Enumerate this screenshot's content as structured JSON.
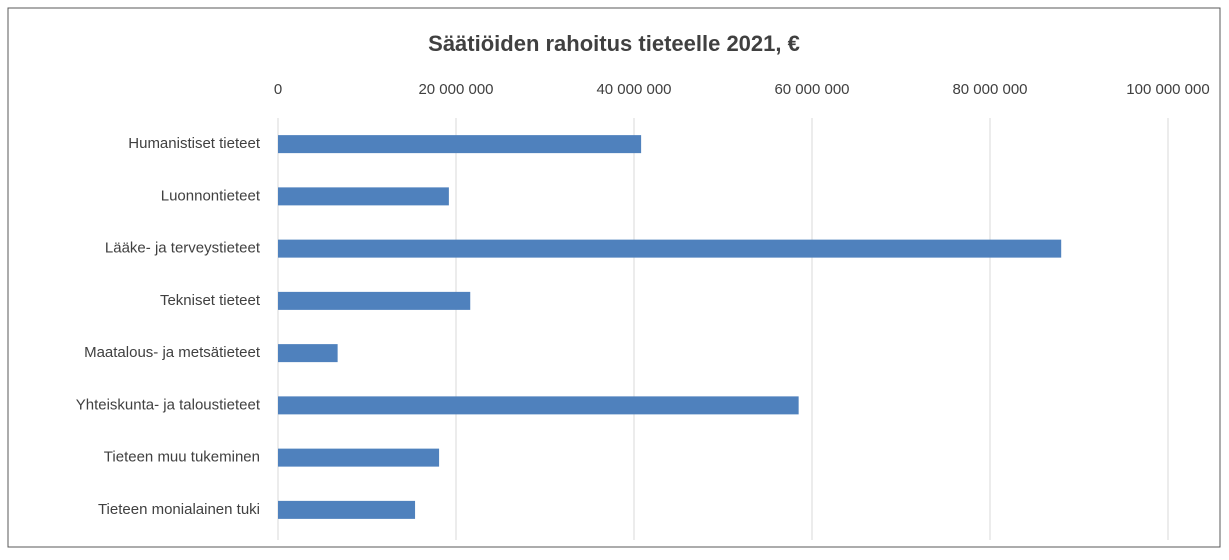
{
  "chart_data": {
    "type": "bar",
    "orientation": "horizontal",
    "title": "Säätiöiden rahoitus tieteelle 2021, €",
    "categories": [
      "Humanistiset tieteet",
      "Luonnontieteet",
      "Lääke- ja terveystieteet",
      "Tekniset tieteet",
      "Maatalous- ja metsätieteet",
      "Yhteiskunta- ja taloustieteet",
      "Tieteen muu tukeminen",
      "Tieteen monialainen tuki"
    ],
    "values": [
      40800000,
      19200000,
      88000000,
      21600000,
      6700000,
      58500000,
      18100000,
      15400000
    ],
    "color": "#4f81bd",
    "xlim": [
      0,
      100000000
    ],
    "xticks": [
      0,
      {
        "value": 20000000,
        "label": "20 000 000"
      },
      {
        "value": 40000000,
        "label": "40 000 000"
      },
      {
        "value": 60000000,
        "label": "60 000 000"
      },
      {
        "value": 80000000,
        "label": "80 000 000"
      },
      {
        "value": 100000000,
        "label": "100 000 000"
      }
    ],
    "grid": true
  }
}
